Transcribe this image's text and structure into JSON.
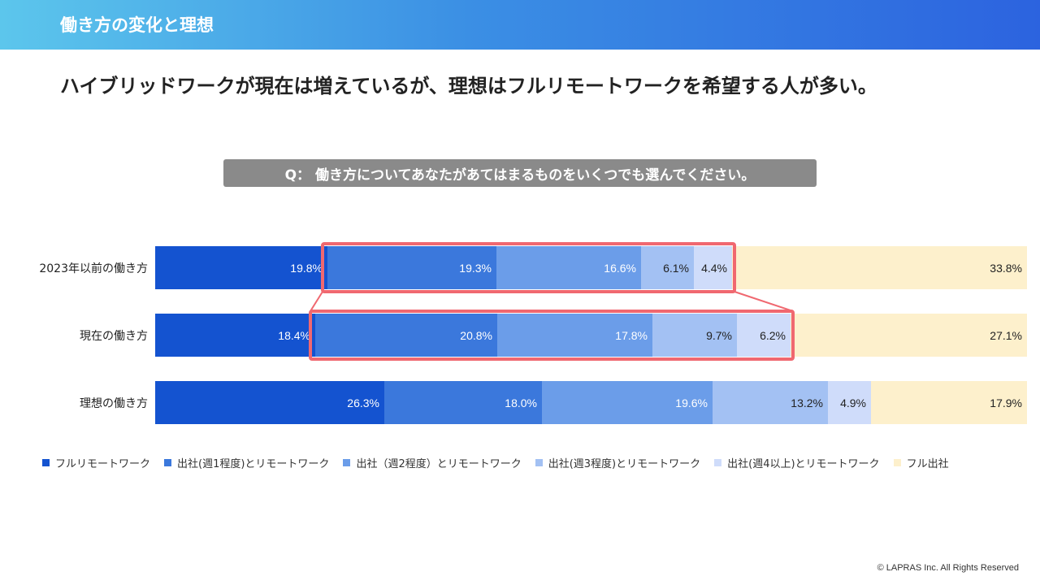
{
  "header": {
    "title": "働き方の変化と理想"
  },
  "headline": "ハイブリッドワークが現在は増えているが、理想はフルリモートワークを希望する人が多い。",
  "question": "Q： 働き方についてあなたがあてはまるものをいくつでも選んでください。",
  "footer": {
    "copyright": "© LAPRAS Inc. All Rights Reserved"
  },
  "chart_data": {
    "type": "bar",
    "orientation": "horizontal-stacked-100",
    "categories": [
      "2023年以前の働き方",
      "現在の働き方",
      "理想の働き方"
    ],
    "series": [
      {
        "name": "フルリモートワーク",
        "color": "#1453d0",
        "values": [
          19.8,
          18.4,
          26.3
        ],
        "labels": [
          "19.8%",
          "18.4%",
          "26.3%"
        ]
      },
      {
        "name": "出社(週1程度)とリモートワーク",
        "color": "#3b78dc",
        "values": [
          19.3,
          20.8,
          18.0
        ],
        "labels": [
          "19.3%",
          "20.8%",
          "18.0%"
        ]
      },
      {
        "name": "出社（週2程度）とリモートワーク",
        "color": "#6b9de9",
        "values": [
          16.6,
          17.8,
          19.6
        ],
        "labels": [
          "16.6%",
          "17.8%",
          "19.6%"
        ]
      },
      {
        "name": "出社(週3程度)とリモートワーク",
        "color": "#a3c1f3",
        "values": [
          6.1,
          9.7,
          13.2
        ],
        "labels": [
          "6.1%",
          "9.7%",
          "13.2%"
        ]
      },
      {
        "name": "出社(週4以上)とリモートワーク",
        "color": "#cfdcfa",
        "values": [
          4.4,
          6.2,
          4.9
        ],
        "labels": [
          "4.4%",
          "6.2%",
          "4.9%"
        ]
      },
      {
        "name": "フル出社",
        "color": "#fdf0cc",
        "values": [
          33.8,
          27.1,
          17.9
        ],
        "labels": [
          "33.8%",
          "27.1%",
          "17.9%"
        ]
      }
    ],
    "highlight": {
      "rows": [
        0,
        1
      ],
      "series": [
        1,
        2,
        3,
        4
      ],
      "color": "#f06870"
    },
    "legend_position": "bottom",
    "grid": false
  }
}
